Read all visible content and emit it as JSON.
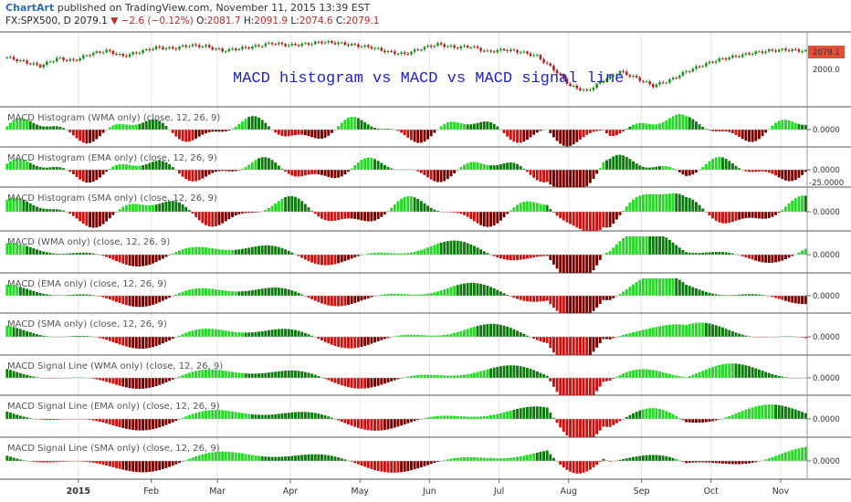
{
  "header": {
    "brand": "ChartArt",
    "published": " published on TradingView.com, November 11, 2015 13:39 EST",
    "symbol": "FX:SPX500, D",
    "last": "2079.1",
    "change": "▼ −2.6 (−0.12%)",
    "o_label": "O:",
    "o_val": "2081.7",
    "h_label": "H:",
    "h_val": "2091.9",
    "l_label": "L:",
    "l_val": "2074.6",
    "c_label": "C:",
    "c_val": "2079.1"
  },
  "overlay_text": "MACD histogram vs MACD vs MACD signal line",
  "price_labels": {
    "last": "2079.1",
    "level": "2000.0"
  },
  "colors": {
    "up": "#26d926",
    "down": "#cc1111",
    "up_dark": "#0b7a0b",
    "down_dark": "#7a0000",
    "grid": "#e6e6e6",
    "divider": "#555555",
    "last_badge": "#e0513a"
  },
  "chart_data": [
    {
      "type": "candlestick",
      "symbol": "FX:SPX500",
      "ylim": [
        1850,
        2150
      ],
      "level_label": "2000.0",
      "last": 2079.1,
      "close_path": [
        [
          0,
          2055
        ],
        [
          5,
          2035
        ],
        [
          10,
          2015
        ],
        [
          15,
          2050
        ],
        [
          20,
          2040
        ],
        [
          25,
          2070
        ],
        [
          30,
          2085
        ],
        [
          35,
          2060
        ],
        [
          40,
          2080
        ],
        [
          45,
          2100
        ],
        [
          50,
          2095
        ],
        [
          55,
          2110
        ],
        [
          60,
          2105
        ],
        [
          65,
          2085
        ],
        [
          70,
          2095
        ],
        [
          75,
          2105
        ],
        [
          80,
          2120
        ],
        [
          85,
          2110
        ],
        [
          90,
          2115
        ],
        [
          95,
          2125
        ],
        [
          100,
          2120
        ],
        [
          105,
          2110
        ],
        [
          110,
          2100
        ],
        [
          115,
          2080
        ],
        [
          120,
          2070
        ],
        [
          125,
          2095
        ],
        [
          130,
          2115
        ],
        [
          135,
          2100
        ],
        [
          140,
          2105
        ],
        [
          145,
          2080
        ],
        [
          150,
          2090
        ],
        [
          155,
          2080
        ],
        [
          160,
          2060
        ],
        [
          165,
          2000
        ],
        [
          170,
          1925
        ],
        [
          175,
          1900
        ],
        [
          180,
          1950
        ],
        [
          185,
          1990
        ],
        [
          190,
          1960
        ],
        [
          195,
          1925
        ],
        [
          200,
          1950
        ],
        [
          205,
          1990
        ],
        [
          210,
          2020
        ],
        [
          215,
          2045
        ],
        [
          220,
          2060
        ],
        [
          225,
          2075
        ],
        [
          230,
          2085
        ],
        [
          235,
          2090
        ],
        [
          240,
          2085
        ],
        [
          242,
          2079
        ]
      ]
    },
    {
      "type": "histogram",
      "title": "MACD Histogram (WMA only) (close, 12, 26, 9)",
      "zero_label": "0.0000",
      "phase": 0.2,
      "freq": 0.19,
      "amp": 0.55,
      "drift": 0,
      "crash": 1.0,
      "spike": 0.8
    },
    {
      "type": "histogram",
      "title": "MACD Histogram (EMA only) (close, 12, 26, 9)",
      "zero_label": "0.0000",
      "extra_label": "-25.0000",
      "phase": 0.4,
      "freq": 0.18,
      "amp": 0.5,
      "drift": 0,
      "crash": 0.95,
      "spike": 0.7
    },
    {
      "type": "histogram",
      "title": "MACD Histogram (SMA only) (close, 12, 26, 9)",
      "zero_label": "0.0000",
      "phase": 0.7,
      "freq": 0.16,
      "amp": 0.6,
      "drift": 0,
      "crash": 0.85,
      "spike": 0.9
    },
    {
      "type": "histogram",
      "title": "MACD (WMA only) (close, 12, 26, 9)",
      "zero_label": "0.0000",
      "phase": 1.0,
      "freq": 0.1,
      "amp": 0.45,
      "drift": 0.2,
      "crash": 1.0,
      "spike": 0.7
    },
    {
      "type": "histogram",
      "title": "MACD (EMA only) (close, 12, 26, 9)",
      "zero_label": "0.0000",
      "phase": 1.2,
      "freq": 0.095,
      "amp": 0.45,
      "drift": 0.15,
      "crash": 1.0,
      "spike": 0.75
    },
    {
      "type": "histogram",
      "title": "MACD (SMA only) (close, 12, 26, 9)",
      "zero_label": "0.0000",
      "phase": 1.4,
      "freq": 0.09,
      "amp": 0.45,
      "drift": 0.1,
      "crash": 1.0,
      "spike": 0.7
    },
    {
      "type": "histogram",
      "title": "MACD Signal Line (WMA only) (close, 12, 26, 9)",
      "zero_label": "0.0000",
      "phase": 1.7,
      "freq": 0.085,
      "amp": 0.45,
      "drift": 0.15,
      "crash": 1.0,
      "spike": 0.7
    },
    {
      "type": "histogram",
      "title": "MACD Signal Line (EMA only) (close, 12, 26, 9)",
      "zero_label": "0.0000",
      "phase": 1.9,
      "freq": 0.08,
      "amp": 0.45,
      "drift": 0.1,
      "crash": 1.0,
      "spike": 0.8
    },
    {
      "type": "histogram",
      "title": "MACD Signal Line (SMA only) (close, 12, 26, 9)",
      "zero_label": "0.0000",
      "phase": 2.1,
      "freq": 0.075,
      "amp": 0.45,
      "drift": 0.1,
      "crash": 1.0,
      "spike": 0.85
    }
  ],
  "x_axis": {
    "bars": 242,
    "ticks": [
      {
        "label": "2015",
        "bar": 22,
        "bold": true
      },
      {
        "label": "Feb",
        "bar": 44
      },
      {
        "label": "Mar",
        "bar": 64
      },
      {
        "label": "Apr",
        "bar": 86
      },
      {
        "label": "May",
        "bar": 107
      },
      {
        "label": "Jun",
        "bar": 128
      },
      {
        "label": "Jul",
        "bar": 149
      },
      {
        "label": "Aug",
        "bar": 170
      },
      {
        "label": "Sep",
        "bar": 192
      },
      {
        "label": "Oct",
        "bar": 213
      },
      {
        "label": "Nov",
        "bar": 234
      }
    ]
  }
}
